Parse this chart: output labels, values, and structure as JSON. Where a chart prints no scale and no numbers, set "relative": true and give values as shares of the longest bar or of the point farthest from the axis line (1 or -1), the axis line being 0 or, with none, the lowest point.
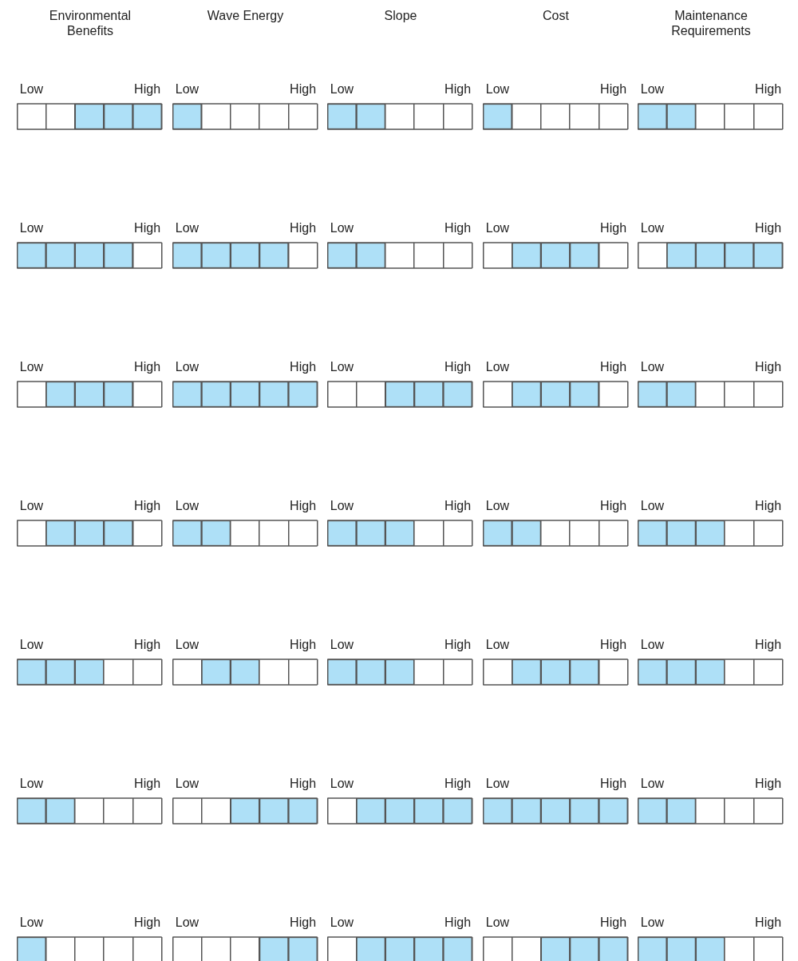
{
  "chart_data": [
    {
      "type": "bar",
      "title": "Environmental Benefits",
      "categories": [
        "Low",
        null,
        null,
        null,
        "High"
      ],
      "values": [
        0,
        0,
        1,
        1,
        1
      ],
      "color": "#aee0f7",
      "relative": true,
      "grid": "x"
    },
    {
      "type": "bar",
      "title": "Wave Energy",
      "categories": [
        "Low",
        null,
        null,
        null,
        "High"
      ],
      "values": [
        1,
        0,
        0,
        0,
        0
      ],
      "color": "#aee0f7",
      "relative": true,
      "grid": "x"
    },
    {
      "type": "bar",
      "title": "Slope",
      "categories": [
        "Low",
        null,
        null,
        null,
        "High"
      ],
      "values": [
        1,
        1,
        0,
        0,
        0
      ],
      "color": "#aee0f7",
      "relative": true,
      "grid": "x"
    },
    {
      "type": "bar",
      "title": "Cost",
      "categories": [
        "Low",
        null,
        null,
        null,
        "High"
      ],
      "values": [
        1,
        0,
        0,
        0,
        0
      ],
      "color": "#aee0f7",
      "relative": true,
      "grid": "x"
    },
    {
      "type": "bar",
      "title": "Maintenance Requirements",
      "categories": [
        "Low",
        null,
        null,
        null,
        "High"
      ],
      "values": [
        1,
        1,
        0,
        0,
        0
      ],
      "color": "#aee0f7",
      "relative": true,
      "grid": "x"
    },
    {
      "type": "bar",
      "categories": [
        "Low",
        null,
        null,
        null,
        "High"
      ],
      "values": [
        1,
        1,
        1,
        1,
        0
      ],
      "color": "#aee0f7",
      "relative": true,
      "grid": "x"
    },
    {
      "type": "bar",
      "categories": [
        "Low",
        null,
        null,
        null,
        "High"
      ],
      "values": [
        1,
        1,
        1,
        1,
        0
      ],
      "color": "#aee0f7",
      "relative": true,
      "grid": "x"
    },
    {
      "type": "bar",
      "categories": [
        "Low",
        null,
        null,
        null,
        "High"
      ],
      "values": [
        1,
        1,
        0,
        0,
        0
      ],
      "color": "#aee0f7",
      "relative": true,
      "grid": "x"
    },
    {
      "type": "bar",
      "categories": [
        "Low",
        null,
        null,
        null,
        "High"
      ],
      "values": [
        0,
        1,
        1,
        1,
        0
      ],
      "color": "#aee0f7",
      "relative": true,
      "grid": "x"
    },
    {
      "type": "bar",
      "categories": [
        "Low",
        null,
        null,
        null,
        "High"
      ],
      "values": [
        0,
        1,
        1,
        1,
        1
      ],
      "color": "#aee0f7",
      "relative": true,
      "grid": "x"
    },
    {
      "type": "bar",
      "categories": [
        "Low",
        null,
        null,
        null,
        "High"
      ],
      "values": [
        0,
        1,
        1,
        1,
        0
      ],
      "color": "#aee0f7",
      "relative": true,
      "grid": "x"
    },
    {
      "type": "bar",
      "categories": [
        "Low",
        null,
        null,
        null,
        "High"
      ],
      "values": [
        1,
        1,
        1,
        1,
        1
      ],
      "color": "#aee0f7",
      "relative": true,
      "grid": "x"
    },
    {
      "type": "bar",
      "categories": [
        "Low",
        null,
        null,
        null,
        "High"
      ],
      "values": [
        0,
        0,
        1,
        1,
        1
      ],
      "color": "#aee0f7",
      "relative": true,
      "grid": "x"
    },
    {
      "type": "bar",
      "categories": [
        "Low",
        null,
        null,
        null,
        "High"
      ],
      "values": [
        0,
        1,
        1,
        1,
        0
      ],
      "color": "#aee0f7",
      "relative": true,
      "grid": "x"
    },
    {
      "type": "bar",
      "categories": [
        "Low",
        null,
        null,
        null,
        "High"
      ],
      "values": [
        1,
        1,
        0,
        0,
        0
      ],
      "color": "#aee0f7",
      "relative": true,
      "grid": "x"
    },
    {
      "type": "bar",
      "categories": [
        "Low",
        null,
        null,
        null,
        "High"
      ],
      "values": [
        0,
        1,
        1,
        1,
        0
      ],
      "color": "#aee0f7",
      "relative": true,
      "grid": "x"
    },
    {
      "type": "bar",
      "categories": [
        "Low",
        null,
        null,
        null,
        "High"
      ],
      "values": [
        1,
        1,
        0,
        0,
        0
      ],
      "color": "#aee0f7",
      "relative": true,
      "grid": "x"
    },
    {
      "type": "bar",
      "categories": [
        "Low",
        null,
        null,
        null,
        "High"
      ],
      "values": [
        1,
        1,
        1,
        0,
        0
      ],
      "color": "#aee0f7",
      "relative": true,
      "grid": "x"
    },
    {
      "type": "bar",
      "categories": [
        "Low",
        null,
        null,
        null,
        "High"
      ],
      "values": [
        1,
        1,
        0,
        0,
        0
      ],
      "color": "#aee0f7",
      "relative": true,
      "grid": "x"
    },
    {
      "type": "bar",
      "categories": [
        "Low",
        null,
        null,
        null,
        "High"
      ],
      "values": [
        1,
        1,
        1,
        0,
        0
      ],
      "color": "#aee0f7",
      "relative": true,
      "grid": "x"
    },
    {
      "type": "bar",
      "categories": [
        "Low",
        null,
        null,
        null,
        "High"
      ],
      "values": [
        1,
        1,
        1,
        0,
        0
      ],
      "color": "#aee0f7",
      "relative": true,
      "grid": "x"
    },
    {
      "type": "bar",
      "categories": [
        "Low",
        null,
        null,
        null,
        "High"
      ],
      "values": [
        0,
        1,
        1,
        0,
        0
      ],
      "color": "#aee0f7",
      "relative": true,
      "grid": "x"
    },
    {
      "type": "bar",
      "categories": [
        "Low",
        null,
        null,
        null,
        "High"
      ],
      "values": [
        1,
        1,
        1,
        0,
        0
      ],
      "color": "#aee0f7",
      "relative": true,
      "grid": "x"
    },
    {
      "type": "bar",
      "categories": [
        "Low",
        null,
        null,
        null,
        "High"
      ],
      "values": [
        0,
        1,
        1,
        1,
        0
      ],
      "color": "#aee0f7",
      "relative": true,
      "grid": "x"
    },
    {
      "type": "bar",
      "categories": [
        "Low",
        null,
        null,
        null,
        "High"
      ],
      "values": [
        1,
        1,
        1,
        0,
        0
      ],
      "color": "#aee0f7",
      "relative": true,
      "grid": "x"
    },
    {
      "type": "bar",
      "categories": [
        "Low",
        null,
        null,
        null,
        "High"
      ],
      "values": [
        1,
        1,
        0,
        0,
        0
      ],
      "color": "#aee0f7",
      "relative": true,
      "grid": "x"
    },
    {
      "type": "bar",
      "categories": [
        "Low",
        null,
        null,
        null,
        "High"
      ],
      "values": [
        0,
        0,
        1,
        1,
        1
      ],
      "color": "#aee0f7",
      "relative": true,
      "grid": "x"
    },
    {
      "type": "bar",
      "categories": [
        "Low",
        null,
        null,
        null,
        "High"
      ],
      "values": [
        0,
        1,
        1,
        1,
        1
      ],
      "color": "#aee0f7",
      "relative": true,
      "grid": "x"
    },
    {
      "type": "bar",
      "categories": [
        "Low",
        null,
        null,
        null,
        "High"
      ],
      "values": [
        1,
        1,
        1,
        1,
        1
      ],
      "color": "#aee0f7",
      "relative": true,
      "grid": "x"
    },
    {
      "type": "bar",
      "categories": [
        "Low",
        null,
        null,
        null,
        "High"
      ],
      "values": [
        1,
        1,
        0,
        0,
        0
      ],
      "color": "#aee0f7",
      "relative": true,
      "grid": "x"
    },
    {
      "type": "bar",
      "categories": [
        "Low",
        null,
        null,
        null,
        "High"
      ],
      "values": [
        1,
        0,
        0,
        0,
        0
      ],
      "color": "#aee0f7",
      "relative": true,
      "grid": "x"
    },
    {
      "type": "bar",
      "categories": [
        "Low",
        null,
        null,
        null,
        "High"
      ],
      "values": [
        0,
        0,
        0,
        1,
        1
      ],
      "color": "#aee0f7",
      "relative": true,
      "grid": "x"
    },
    {
      "type": "bar",
      "categories": [
        "Low",
        null,
        null,
        null,
        "High"
      ],
      "values": [
        0,
        1,
        1,
        1,
        1
      ],
      "color": "#aee0f7",
      "relative": true,
      "grid": "x"
    },
    {
      "type": "bar",
      "categories": [
        "Low",
        null,
        null,
        null,
        "High"
      ],
      "values": [
        0,
        0,
        1,
        1,
        1
      ],
      "color": "#aee0f7",
      "relative": true,
      "grid": "x"
    },
    {
      "type": "bar",
      "categories": [
        "Low",
        null,
        null,
        null,
        "High"
      ],
      "values": [
        1,
        1,
        1,
        0,
        0
      ],
      "color": "#aee0f7",
      "relative": true,
      "grid": "x"
    }
  ]
}
